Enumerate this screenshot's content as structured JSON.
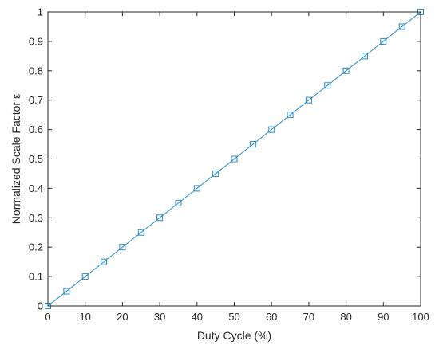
{
  "chart_data": {
    "type": "line",
    "xlabel": "Duty Cycle (%)",
    "ylabel": "Normalized Scale Factor ε",
    "xlim": [
      0,
      100
    ],
    "ylim": [
      0,
      1
    ],
    "xticks": [
      0,
      10,
      20,
      30,
      40,
      50,
      60,
      70,
      80,
      90,
      100
    ],
    "xtick_labels": [
      "0",
      "10",
      "20",
      "30",
      "40",
      "50",
      "60",
      "70",
      "80",
      "90",
      "100"
    ],
    "yticks": [
      0,
      0.1,
      0.2,
      0.3,
      0.4,
      0.5,
      0.6,
      0.7,
      0.8,
      0.9,
      1
    ],
    "ytick_labels": [
      "0",
      "0.1",
      "0.2",
      "0.3",
      "0.4",
      "0.5",
      "0.6",
      "0.7",
      "0.8",
      "0.9",
      "1"
    ],
    "grid": false,
    "marker": "square",
    "series_color": "#2a8bc8",
    "series": [
      {
        "x": [
          0,
          5,
          10,
          15,
          20,
          25,
          30,
          35,
          40,
          45,
          50,
          55,
          60,
          65,
          70,
          75,
          80,
          85,
          90,
          95,
          100
        ],
        "y": [
          0,
          0.05,
          0.1,
          0.15,
          0.2,
          0.25,
          0.3,
          0.35,
          0.4,
          0.45,
          0.5,
          0.55,
          0.6,
          0.65,
          0.7,
          0.75,
          0.8,
          0.85,
          0.9,
          0.95,
          1
        ]
      }
    ]
  }
}
